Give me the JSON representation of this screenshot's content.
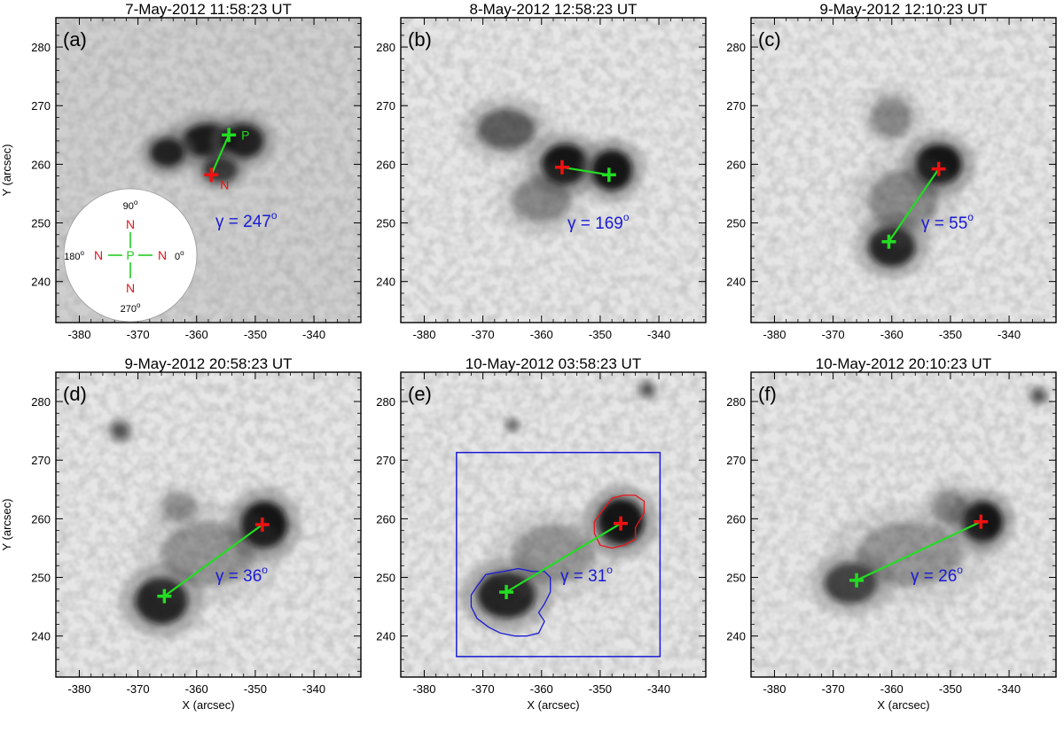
{
  "figure": {
    "x_axis_label": "X (arcsec)",
    "y_axis_label": "Y (arcsec)",
    "x_ticks": [
      "-380",
      "-370",
      "-360",
      "-350",
      "-340"
    ],
    "y_ticks": [
      "240",
      "250",
      "260",
      "270",
      "280"
    ],
    "colors": {
      "positive": "#22dd22",
      "negative": "#ee1111",
      "annotation": "#1a1ad6"
    }
  },
  "chart_data": {
    "type": "image-panels",
    "x_range": [
      -384,
      -332
    ],
    "y_range": [
      233,
      285
    ],
    "panels": [
      {
        "label": "(a)",
        "title": "7-May-2012 11:58:23 UT",
        "gamma": "γ = 247",
        "deg": "o",
        "p": [
          -354.5,
          265.0
        ],
        "n": [
          -357.5,
          258.2
        ],
        "p_label": "P",
        "n_label": "N",
        "sunspots": [
          [
            -358,
            264,
            4.5,
            3.0,
            0.9
          ],
          [
            -365,
            262,
            3.0,
            2.5,
            0.85
          ],
          [
            -352,
            264,
            3.5,
            3.0,
            0.85
          ],
          [
            -356,
            259,
            3.0,
            2.2,
            0.7
          ]
        ]
      },
      {
        "label": "(b)",
        "title": "8-May-2012 12:58:23 UT",
        "gamma": "γ = 169",
        "deg": "o",
        "p": [
          -348.5,
          258.2
        ],
        "n": [
          -356.5,
          259.5
        ],
        "sunspots": [
          [
            -356,
            260,
            4.0,
            3.5,
            0.95
          ],
          [
            -348,
            259,
            3.5,
            3.5,
            0.95
          ],
          [
            -366,
            266,
            5.0,
            3.5,
            0.55
          ],
          [
            -360,
            254,
            5.0,
            4.0,
            0.35
          ]
        ]
      },
      {
        "label": "(c)",
        "title": "9-May-2012 12:10:23 UT",
        "gamma": "γ = 55",
        "deg": "o",
        "p": [
          -360.5,
          246.8
        ],
        "n": [
          -352.0,
          259.2
        ],
        "sunspots": [
          [
            -352,
            260,
            4.0,
            3.5,
            0.95
          ],
          [
            -360,
            246,
            4.0,
            3.5,
            0.85
          ],
          [
            -358,
            254,
            6.0,
            5.0,
            0.35
          ],
          [
            -360,
            268,
            3.5,
            3.5,
            0.35
          ]
        ]
      },
      {
        "label": "(d)",
        "title": "9-May-2012 20:58:23 UT",
        "gamma": "γ = 36",
        "deg": "o",
        "p": [
          -365.5,
          246.8
        ],
        "n": [
          -348.8,
          259.0
        ],
        "sunspots": [
          [
            -348.5,
            259,
            4.0,
            4.0,
            0.95
          ],
          [
            -366,
            246,
            4.5,
            4.0,
            0.85
          ],
          [
            -358,
            254,
            8.0,
            5.5,
            0.3
          ],
          [
            -373,
            275,
            1.5,
            1.5,
            0.6
          ],
          [
            -363,
            262,
            3.0,
            2.5,
            0.3
          ]
        ]
      },
      {
        "label": "(e)",
        "title": "10-May-2012 03:58:23 UT",
        "gamma": "γ = 31",
        "deg": "o",
        "p": [
          -366.0,
          247.5
        ],
        "n": [
          -346.5,
          259.2
        ],
        "sunspots": [
          [
            -346.5,
            259.5,
            4.0,
            4.0,
            0.95
          ],
          [
            -366,
            247,
            5.0,
            4.0,
            0.85
          ],
          [
            -358,
            254,
            7.0,
            5.0,
            0.3
          ],
          [
            -342,
            282,
            1.2,
            1.2,
            0.6
          ],
          [
            -365,
            276,
            1.0,
            1.0,
            0.5
          ]
        ]
      },
      {
        "label": "(f)",
        "title": "10-May-2012 20:10:23 UT",
        "gamma": "γ = 26",
        "deg": "o",
        "p": [
          -366.0,
          249.5
        ],
        "n": [
          -344.8,
          259.5
        ],
        "sunspots": [
          [
            -344.5,
            259.5,
            3.5,
            3.5,
            0.95
          ],
          [
            -367,
            249,
            4.5,
            3.5,
            0.7
          ],
          [
            -357,
            254,
            9.0,
            5.5,
            0.3
          ],
          [
            -350,
            262,
            3.0,
            3.0,
            0.35
          ],
          [
            -335,
            281,
            1.2,
            1.2,
            0.6
          ]
        ]
      }
    ],
    "orientation_key": {
      "angles": [
        "90",
        "180",
        "0",
        "270"
      ],
      "deg": "o",
      "n_label": "N",
      "p_label": "P"
    },
    "contours": {
      "panel": "(e)",
      "box": [
        -374.5,
        -339.8,
        236.5,
        271.3
      ],
      "positive_contour": [
        [
          -371,
          248.5
        ],
        [
          -369.5,
          250.5
        ],
        [
          -366.5,
          251
        ],
        [
          -364,
          251.5
        ],
        [
          -361.5,
          251
        ],
        [
          -359.5,
          251
        ],
        [
          -358.5,
          250
        ],
        [
          -358.5,
          247.5
        ],
        [
          -359.5,
          245.5
        ],
        [
          -360.5,
          244
        ],
        [
          -359.5,
          242.5
        ],
        [
          -360.5,
          240.5
        ],
        [
          -362.5,
          240
        ],
        [
          -364.5,
          240
        ],
        [
          -367,
          240.5
        ],
        [
          -369,
          241.5
        ],
        [
          -371,
          243
        ],
        [
          -372,
          245
        ],
        [
          -372,
          247
        ]
      ],
      "negative_contour": [
        [
          -349.5,
          261.5
        ],
        [
          -348,
          263.5
        ],
        [
          -346,
          264
        ],
        [
          -344,
          264
        ],
        [
          -342.5,
          263
        ],
        [
          -342.5,
          261
        ],
        [
          -344,
          258.5
        ],
        [
          -344,
          256.5
        ],
        [
          -346,
          255.5
        ],
        [
          -348,
          255
        ],
        [
          -350,
          255.5
        ],
        [
          -351,
          257.5
        ],
        [
          -351,
          259.5
        ]
      ]
    }
  }
}
